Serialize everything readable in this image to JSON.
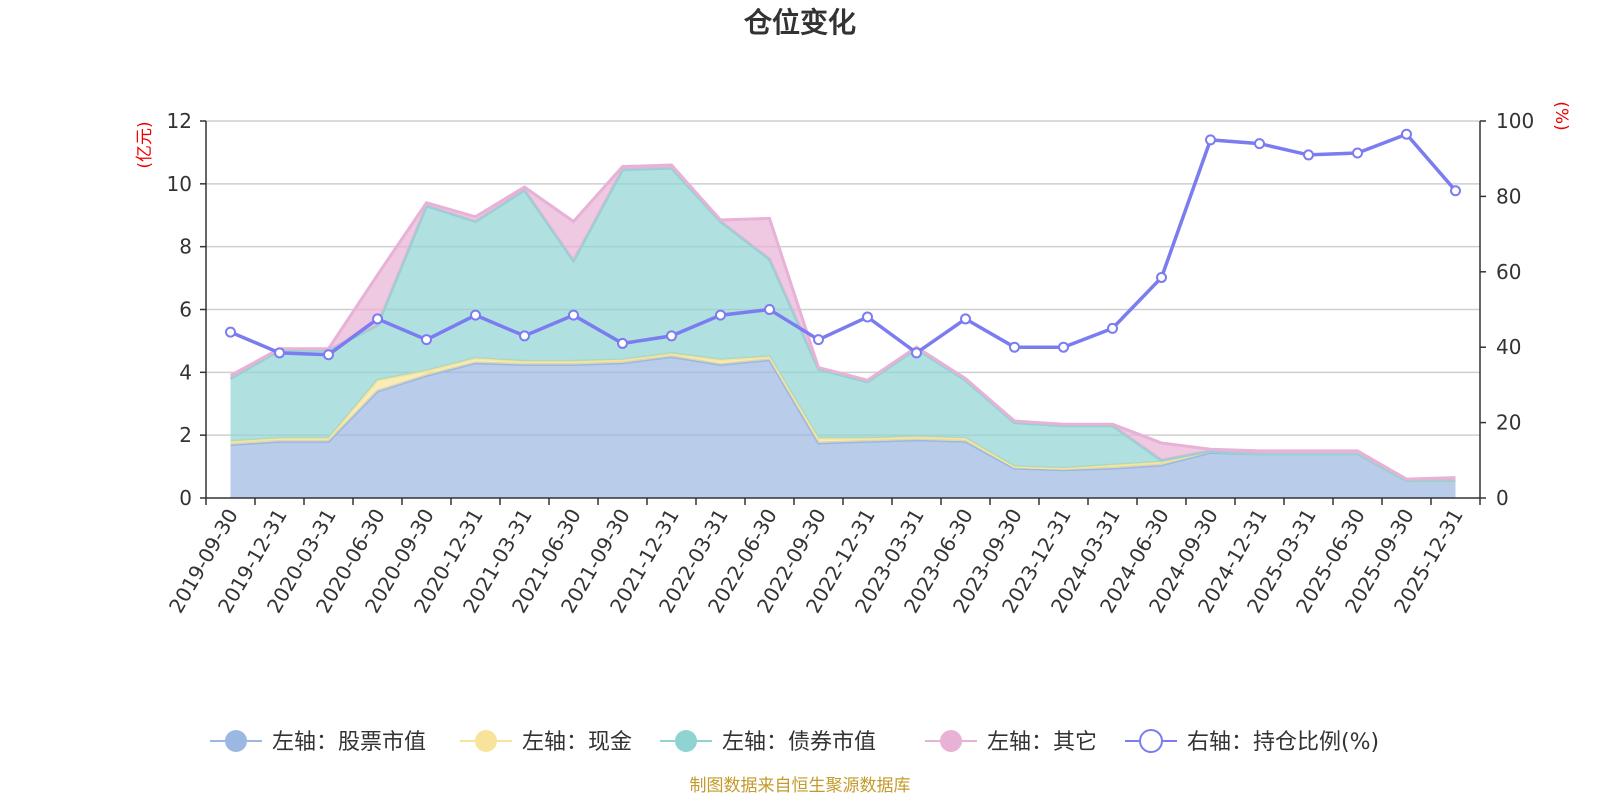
{
  "chart_data": {
    "type": "area",
    "title": "仓位变化",
    "left_unit": "(亿元)",
    "right_unit": "(%)",
    "left_ylim": [
      0,
      12
    ],
    "left_ticks": [
      0,
      2,
      4,
      6,
      8,
      10,
      12
    ],
    "right_ylim": [
      0,
      100
    ],
    "right_ticks": [
      0,
      20,
      40,
      60,
      80,
      100
    ],
    "categories": [
      "2019-09-30",
      "2019-12-31",
      "2020-03-31",
      "2020-06-30",
      "2020-09-30",
      "2020-12-31",
      "2021-03-31",
      "2021-06-30",
      "2021-09-30",
      "2021-12-31",
      "2022-03-31",
      "2022-06-30",
      "2022-09-30",
      "2022-12-31",
      "2023-03-31",
      "2023-06-30",
      "2023-09-30",
      "2023-12-31",
      "2024-03-31",
      "2024-06-30",
      "2024-09-30",
      "2024-12-31",
      "2025-03-31",
      "2025-06-30",
      "2025-09-30",
      "2025-12-31"
    ],
    "series": [
      {
        "name": "左轴：股票市值",
        "axis": "left",
        "color": "#9bb8e3",
        "values": [
          1.7,
          1.8,
          1.8,
          3.4,
          3.9,
          4.3,
          4.25,
          4.25,
          4.3,
          4.5,
          4.25,
          4.4,
          1.75,
          1.8,
          1.85,
          1.8,
          0.95,
          0.9,
          0.95,
          1.05,
          1.45,
          1.4,
          1.4,
          1.4,
          0.55,
          0.55
        ]
      },
      {
        "name": "左轴：现金",
        "axis": "left",
        "color": "#f7e49a",
        "values": [
          0.1,
          0.1,
          0.1,
          0.35,
          0.15,
          0.15,
          0.1,
          0.1,
          0.1,
          0.1,
          0.15,
          0.1,
          0.15,
          0.1,
          0.1,
          0.1,
          0.05,
          0.05,
          0.1,
          0.1,
          0.05,
          0.0,
          0.0,
          0.0,
          0.0,
          0.0
        ]
      },
      {
        "name": "左轴：债券市值",
        "axis": "left",
        "color": "#8fd3d3",
        "values": [
          2.0,
          2.8,
          2.8,
          1.75,
          5.25,
          4.35,
          5.45,
          3.2,
          6.05,
          5.9,
          4.4,
          3.1,
          2.2,
          1.8,
          2.8,
          1.85,
          1.4,
          1.35,
          1.25,
          0.05,
          0.0,
          0.0,
          0.0,
          0.0,
          0.0,
          0.0
        ]
      },
      {
        "name": "左轴：其它",
        "axis": "left",
        "color": "#e8b1d6",
        "values": [
          0.1,
          0.05,
          0.05,
          1.6,
          0.1,
          0.15,
          0.1,
          1.25,
          0.1,
          0.1,
          0.05,
          1.3,
          0.05,
          0.05,
          0.05,
          0.05,
          0.05,
          0.05,
          0.05,
          0.55,
          0.05,
          0.1,
          0.1,
          0.1,
          0.05,
          0.1
        ]
      },
      {
        "name": "右轴：持仓比例(%)",
        "axis": "right",
        "color": "#7b7cf0",
        "values": [
          44,
          38.5,
          38,
          47.5,
          42,
          48.5,
          43,
          48.5,
          41,
          43,
          48.5,
          50,
          42,
          48,
          38.5,
          47.5,
          40,
          40,
          45,
          58.5,
          95,
          94,
          91,
          91.5,
          96.5,
          81.5
        ]
      }
    ],
    "legend_position": "bottom",
    "source_note": "制图数据来自恒生聚源数据库"
  }
}
